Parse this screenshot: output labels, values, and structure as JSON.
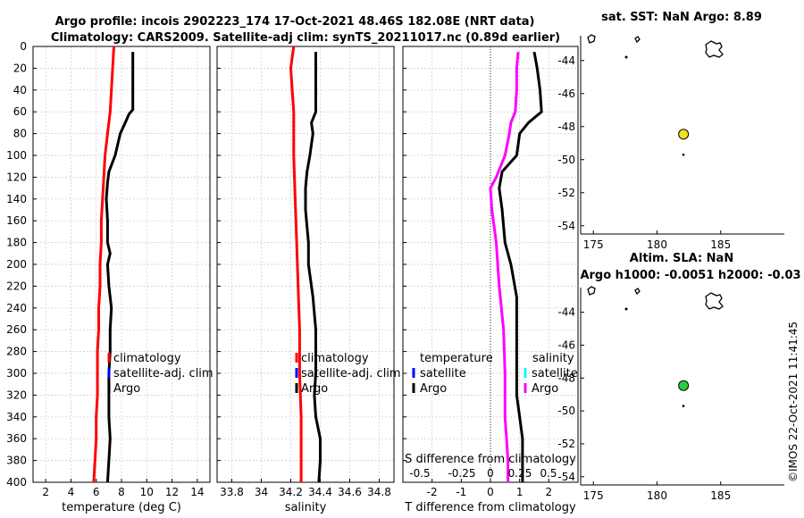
{
  "title": {
    "line1": "Argo profile: incois 2902223_174 17-Oct-2021 48.46S 182.08E (NRT data)",
    "line2": "Climatology: CARS2009. Satellite-adj clim: synTS_20211017.nc (0.89d earlier)"
  },
  "colors": {
    "argo": "#000000",
    "clim": "#ff0000",
    "satclim": "#0000ff",
    "Sdiff": "#ff00ff",
    "Tsat": "#0000ff",
    "Ssat": "#00ffff",
    "argoDot": "#f0e020",
    "slaDot": "#2ecc40",
    "grid": "#c8c8c8"
  },
  "depth_ticks": [
    "0",
    "20",
    "40",
    "60",
    "80",
    "100",
    "120",
    "140",
    "160",
    "180",
    "200",
    "220",
    "240",
    "260",
    "280",
    "300",
    "320",
    "340",
    "360",
    "380",
    "400"
  ],
  "chart_data": [
    {
      "type": "line",
      "name": "temperature",
      "xlabel": "temperature (deg C)",
      "xlim": [
        1,
        15
      ],
      "ylim": [
        400,
        0
      ],
      "xticks": [
        2,
        4,
        6,
        8,
        10,
        12,
        14
      ],
      "xtick_labels": [
        "2",
        "4",
        "6",
        "8",
        "10",
        "12",
        "14"
      ],
      "legend": {
        "clim": "climatology",
        "satclim": "satellite-adj. clim",
        "argo": "Argo"
      },
      "series": [
        {
          "name": "climatology",
          "color": "clim",
          "points": [
            [
              7.4,
              0
            ],
            [
              7.3,
              20
            ],
            [
              7.2,
              40
            ],
            [
              7.1,
              60
            ],
            [
              6.9,
              80
            ],
            [
              6.7,
              100
            ],
            [
              6.6,
              120
            ],
            [
              6.5,
              140
            ],
            [
              6.4,
              160
            ],
            [
              6.4,
              180
            ],
            [
              6.3,
              200
            ],
            [
              6.3,
              220
            ],
            [
              6.2,
              240
            ],
            [
              6.2,
              260
            ],
            [
              6.1,
              280
            ],
            [
              6.1,
              300
            ],
            [
              6.1,
              320
            ],
            [
              6.0,
              340
            ],
            [
              6.0,
              360
            ],
            [
              5.9,
              380
            ],
            [
              5.8,
              400
            ]
          ]
        },
        {
          "name": "Argo",
          "color": "argo",
          "points": [
            [
              8.9,
              5
            ],
            [
              8.9,
              20
            ],
            [
              8.9,
              40
            ],
            [
              8.9,
              58
            ],
            [
              8.6,
              62
            ],
            [
              8.3,
              70
            ],
            [
              7.9,
              80
            ],
            [
              7.5,
              100
            ],
            [
              7.0,
              115
            ],
            [
              6.9,
              125
            ],
            [
              6.8,
              140
            ],
            [
              6.9,
              160
            ],
            [
              6.9,
              180
            ],
            [
              7.1,
              190
            ],
            [
              6.9,
              200
            ],
            [
              7.0,
              220
            ],
            [
              7.2,
              240
            ],
            [
              7.1,
              260
            ],
            [
              7.1,
              280
            ],
            [
              7.0,
              300
            ],
            [
              7.0,
              320
            ],
            [
              7.0,
              340
            ],
            [
              7.1,
              360
            ],
            [
              7.0,
              380
            ],
            [
              6.9,
              400
            ]
          ]
        }
      ]
    },
    {
      "type": "line",
      "name": "salinity",
      "xlabel": "salinity",
      "xlim": [
        33.7,
        34.9
      ],
      "ylim": [
        400,
        0
      ],
      "xticks": [
        33.8,
        34.0,
        34.2,
        34.4,
        34.6,
        34.8
      ],
      "xtick_labels": [
        "33.8",
        "34",
        "34.2",
        "34.4",
        "34.6",
        "34.8"
      ],
      "legend": {
        "clim": "climatology",
        "satclim": "satellite-adj. clim",
        "argo": "Argo"
      },
      "series": [
        {
          "name": "climatology",
          "color": "clim",
          "points": [
            [
              34.22,
              0
            ],
            [
              34.21,
              10
            ],
            [
              34.2,
              20
            ],
            [
              34.21,
              40
            ],
            [
              34.22,
              60
            ],
            [
              34.22,
              100
            ],
            [
              34.23,
              140
            ],
            [
              34.24,
              180
            ],
            [
              34.25,
              220
            ],
            [
              34.26,
              260
            ],
            [
              34.26,
              300
            ],
            [
              34.27,
              340
            ],
            [
              34.27,
              380
            ],
            [
              34.27,
              400
            ]
          ]
        },
        {
          "name": "Argo",
          "color": "argo",
          "points": [
            [
              34.37,
              5
            ],
            [
              34.37,
              20
            ],
            [
              34.37,
              40
            ],
            [
              34.37,
              60
            ],
            [
              34.34,
              70
            ],
            [
              34.35,
              80
            ],
            [
              34.33,
              100
            ],
            [
              34.31,
              115
            ],
            [
              34.3,
              130
            ],
            [
              34.3,
              150
            ],
            [
              34.32,
              180
            ],
            [
              34.32,
              200
            ],
            [
              34.35,
              230
            ],
            [
              34.37,
              260
            ],
            [
              34.37,
              300
            ],
            [
              34.36,
              320
            ],
            [
              34.37,
              340
            ],
            [
              34.4,
              360
            ],
            [
              34.4,
              380
            ],
            [
              34.39,
              400
            ]
          ]
        }
      ]
    },
    {
      "type": "line",
      "name": "difference",
      "xlabel": "T difference from climatology",
      "xlabel2": "S difference from climatology",
      "xlim": [
        -3,
        3
      ],
      "ylim": [
        400,
        0
      ],
      "xticks": [
        -2,
        -1,
        0,
        1,
        2
      ],
      "xtick_labels": [
        "-2",
        "-1",
        "0",
        "1",
        "2"
      ],
      "s_tick_labels": [
        "-0.5",
        "-0.25",
        "0",
        "0.25",
        "0.5"
      ],
      "legend": {
        "temperature": "temperature",
        "satellite": "satellite",
        "argo": "Argo",
        "salinity": "salinity"
      },
      "series": [
        {
          "name": "salinity diff",
          "color": "Sdiff",
          "points": [
            [
              0.95,
              5
            ],
            [
              0.9,
              20
            ],
            [
              0.9,
              40
            ],
            [
              0.85,
              60
            ],
            [
              0.7,
              70
            ],
            [
              0.65,
              80
            ],
            [
              0.5,
              100
            ],
            [
              0.2,
              120
            ],
            [
              0.0,
              130
            ],
            [
              0.05,
              150
            ],
            [
              0.2,
              180
            ],
            [
              0.3,
              220
            ],
            [
              0.45,
              260
            ],
            [
              0.5,
              300
            ],
            [
              0.5,
              340
            ],
            [
              0.55,
              360
            ],
            [
              0.6,
              380
            ],
            [
              0.6,
              400
            ]
          ]
        },
        {
          "name": "temperature diff",
          "color": "argo",
          "points": [
            [
              1.5,
              5
            ],
            [
              1.6,
              20
            ],
            [
              1.7,
              40
            ],
            [
              1.75,
              60
            ],
            [
              1.3,
              70
            ],
            [
              1.0,
              80
            ],
            [
              0.9,
              100
            ],
            [
              0.4,
              115
            ],
            [
              0.3,
              130
            ],
            [
              0.4,
              150
            ],
            [
              0.5,
              180
            ],
            [
              0.7,
              200
            ],
            [
              0.9,
              230
            ],
            [
              0.9,
              260
            ],
            [
              0.9,
              300
            ],
            [
              0.9,
              320
            ],
            [
              1.0,
              340
            ],
            [
              1.1,
              360
            ],
            [
              1.1,
              380
            ],
            [
              1.1,
              400
            ]
          ]
        }
      ]
    },
    {
      "type": "scatter",
      "name": "sst-map",
      "title": "sat. SST: NaN Argo: 8.89",
      "xlim": [
        174,
        190
      ],
      "ylim": [
        -54.5,
        -42.5
      ],
      "xticks": [
        175,
        180,
        185
      ],
      "yticks": [
        -44,
        -46,
        -48,
        -50,
        -52,
        -54
      ],
      "argo_position": [
        182.08,
        -48.46
      ]
    },
    {
      "type": "scatter",
      "name": "sla-map",
      "title1": "Altim. SLA: NaN",
      "title2": "Argo h1000: -0.0051 h2000: -0.03",
      "xlim": [
        174,
        190
      ],
      "ylim": [
        -54.5,
        -42.5
      ],
      "xticks": [
        175,
        180,
        185
      ],
      "yticks": [
        -44,
        -46,
        -48,
        -50,
        -52,
        -54
      ],
      "argo_position": [
        182.08,
        -48.46
      ]
    }
  ],
  "side_label": "©IMOS 22-Oct-2021 11:41:45"
}
